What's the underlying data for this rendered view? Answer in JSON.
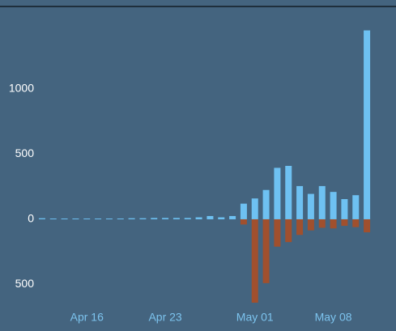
{
  "chart_data": {
    "type": "bar",
    "categories": [
      null,
      null,
      null,
      null,
      "Apr 16",
      null,
      null,
      null,
      null,
      null,
      null,
      "Apr 23",
      null,
      null,
      null,
      null,
      null,
      null,
      null,
      "May 01",
      null,
      null,
      null,
      null,
      null,
      null,
      "May 08",
      null,
      null,
      null
    ],
    "series": [
      {
        "color": "#6ec1f2",
        "values": [
          8,
          6,
          6,
          6,
          6,
          6,
          6,
          6,
          8,
          8,
          10,
          10,
          10,
          10,
          15,
          25,
          15,
          25,
          120,
          160,
          225,
          395,
          410,
          255,
          195,
          255,
          210,
          155,
          185,
          1450
        ]
      },
      {
        "color": "#a0502e",
        "values": [
          0,
          0,
          0,
          0,
          0,
          0,
          0,
          0,
          0,
          0,
          0,
          0,
          0,
          0,
          0,
          0,
          0,
          0,
          -40,
          -640,
          -490,
          -210,
          -175,
          -120,
          -85,
          -65,
          -70,
          -50,
          -60,
          -100
        ]
      }
    ],
    "ylim": [
      -650,
      1500
    ],
    "yticks": [
      {
        "value": -500,
        "label": "500"
      },
      0,
      500,
      1000
    ],
    "grid": false
  }
}
